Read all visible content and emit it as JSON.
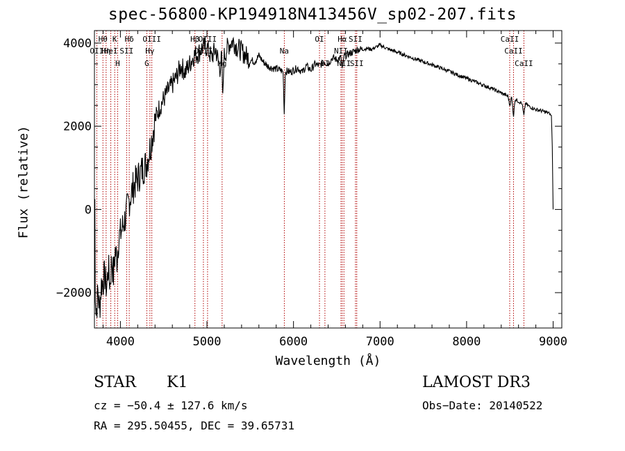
{
  "chart_data": {
    "type": "line",
    "title": "spec-56800-KP194918N413456V_sp02-207.fits",
    "xlabel": "Wavelength (Å)",
    "ylabel": "Flux (relative)",
    "xlim": [
      3700,
      9100
    ],
    "ylim": [
      -2850,
      4300
    ],
    "xticks": [
      4000,
      5000,
      6000,
      7000,
      8000,
      9000
    ],
    "yticks": [
      -2000,
      0,
      2000,
      4000
    ],
    "xtick_labels": [
      "4000",
      "5000",
      "6000",
      "7000",
      "8000",
      "9000"
    ],
    "ytick_labels": [
      "−2000",
      "0",
      "2000",
      "4000"
    ],
    "series": [
      {
        "name": "flux",
        "x": [
          3700,
          3705,
          3710,
          3720,
          3740,
          3760,
          3780,
          3800,
          3820,
          3840,
          3860,
          3880,
          3900,
          3920,
          3940,
          3960,
          3980,
          4000,
          4050,
          4100,
          4150,
          4200,
          4250,
          4300,
          4350,
          4400,
          4450,
          4500,
          4550,
          4600,
          4650,
          4700,
          4750,
          4800,
          4850,
          4900,
          4950,
          5000,
          5050,
          5100,
          5150,
          5170,
          5183,
          5195,
          5220,
          5250,
          5300,
          5350,
          5400,
          5450,
          5500,
          5550,
          5600,
          5650,
          5700,
          5750,
          5800,
          5850,
          5880,
          5893,
          5905,
          5930,
          5960,
          6000,
          6050,
          6100,
          6150,
          6200,
          6250,
          6300,
          6350,
          6400,
          6450,
          6500,
          6550,
          6563,
          6580,
          6600,
          6650,
          6700,
          6750,
          6800,
          6850,
          6900,
          6950,
          7000,
          7100,
          7200,
          7300,
          7400,
          7500,
          7600,
          7700,
          7800,
          7900,
          8000,
          8100,
          8200,
          8300,
          8400,
          8480,
          8498,
          8520,
          8542,
          8560,
          8600,
          8640,
          8662,
          8680,
          8720,
          8760,
          8800,
          8850,
          8900,
          8950,
          8980,
          8990,
          9000
        ],
        "values": [
          -1000,
          200,
          -1900,
          -2500,
          -2000,
          -2400,
          -1800,
          -1700,
          -1600,
          -1900,
          -1400,
          -1800,
          -1200,
          -1600,
          -1000,
          -1200,
          -700,
          -600,
          -250,
          200,
          550,
          750,
          950,
          1100,
          1550,
          2150,
          2450,
          2650,
          2850,
          3000,
          3200,
          3450,
          3300,
          3500,
          3700,
          3750,
          3900,
          3900,
          3650,
          3850,
          3400,
          3650,
          2600,
          3650,
          3800,
          3950,
          4050,
          3900,
          3800,
          3700,
          3600,
          3550,
          3700,
          3550,
          3450,
          3400,
          3380,
          3350,
          3300,
          2300,
          3300,
          3330,
          3300,
          3350,
          3400,
          3300,
          3450,
          3350,
          3500,
          3450,
          3550,
          3500,
          3650,
          3600,
          3650,
          3350,
          3650,
          3700,
          3750,
          3800,
          3850,
          3850,
          3870,
          3850,
          3900,
          3950,
          3850,
          3780,
          3700,
          3620,
          3550,
          3480,
          3400,
          3320,
          3230,
          3150,
          3070,
          2980,
          2900,
          2800,
          2720,
          2500,
          2700,
          2250,
          2650,
          2600,
          2550,
          2250,
          2550,
          2480,
          2440,
          2400,
          2380,
          2350,
          2320,
          2250,
          1500,
          0
        ]
      }
    ],
    "lines": [
      {
        "name": "OII",
        "wavelength": 3727,
        "row": 1
      },
      {
        "name": "Hθ",
        "wavelength": 3798,
        "row": 0
      },
      {
        "name": "Hη",
        "wavelength": 3835,
        "row": 1
      },
      {
        "name": "K",
        "wavelength": 3934,
        "row": 0
      },
      {
        "name": "H",
        "wavelength": 3968,
        "row": 2
      },
      {
        "name": "HeI",
        "wavelength": 3889,
        "row": 1
      },
      {
        "name": "SII",
        "wavelength": 4072,
        "row": 1
      },
      {
        "name": "Hδ",
        "wavelength": 4102,
        "row": 0
      },
      {
        "name": "Hγ",
        "wavelength": 4341,
        "row": 1
      },
      {
        "name": "OIII",
        "wavelength": 4363,
        "row": 0
      },
      {
        "name": "G",
        "wavelength": 4305,
        "row": 2
      },
      {
        "name": "Hβ",
        "wavelength": 4861,
        "row": 0
      },
      {
        "name": "OIII",
        "wavelength": 4959,
        "row": 1
      },
      {
        "name": "OIII",
        "wavelength": 5007,
        "row": 0
      },
      {
        "name": "Mg",
        "wavelength": 5175,
        "row": 2
      },
      {
        "name": "Na",
        "wavelength": 5894,
        "row": 1
      },
      {
        "name": "OI",
        "wavelength": 6300,
        "row": 0
      },
      {
        "name": "OI",
        "wavelength": 6363,
        "row": 2
      },
      {
        "name": "NII",
        "wavelength": 6548,
        "row": 1
      },
      {
        "name": "Hα",
        "wavelength": 6563,
        "row": 0
      },
      {
        "name": "NII",
        "wavelength": 6583,
        "row": 2
      },
      {
        "name": "SII",
        "wavelength": 6716,
        "row": 0
      },
      {
        "name": "SII",
        "wavelength": 6731,
        "row": 2
      },
      {
        "name": "CaII",
        "wavelength": 8498,
        "row": 0
      },
      {
        "name": "CaII",
        "wavelength": 8542,
        "row": 1
      },
      {
        "name": "CaII",
        "wavelength": 8662,
        "row": 2
      }
    ]
  },
  "info": {
    "obj_class": "STAR",
    "subclass": "K1",
    "survey": "LAMOST DR3",
    "cz": "cz = −50.4 ± 127.6 km/s",
    "obs_date": "Obs−Date: 20140522",
    "radec": "RA = 295.50455, DEC =  39.65731"
  },
  "colors": {
    "line_marker": "#b00000",
    "spectrum": "#000000"
  }
}
